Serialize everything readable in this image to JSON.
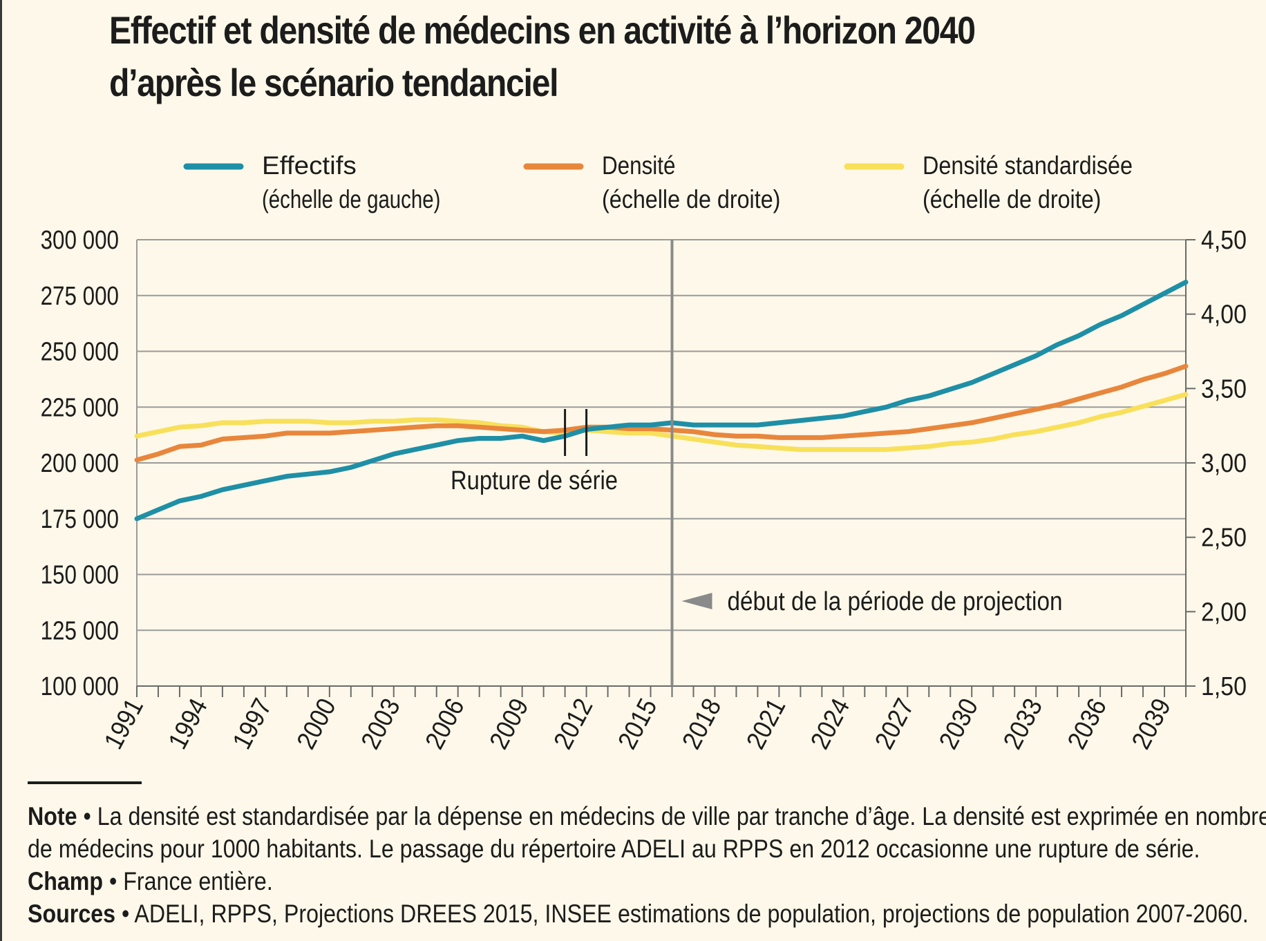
{
  "title": {
    "line1": "Effectif et densité de médecins en activité à l’horizon 2040",
    "line2": "d’après le scénario tendanciel"
  },
  "legend": [
    {
      "name": "Effectifs",
      "scale": "(échelle de gauche)",
      "color": "#1e8fa6"
    },
    {
      "name": "Densité",
      "scale": "(échelle de droite)",
      "color": "#e8863c"
    },
    {
      "name": "Densité standardisée",
      "scale": "(échelle de droite)",
      "color": "#f8e05a"
    }
  ],
  "annotations": {
    "rupture": "Rupture de série",
    "projection": "début de la période de projection"
  },
  "chart_data": {
    "type": "line",
    "x": [
      1991,
      1992,
      1993,
      1994,
      1995,
      1996,
      1997,
      1998,
      1999,
      2000,
      2001,
      2002,
      2003,
      2004,
      2005,
      2006,
      2007,
      2008,
      2009,
      2010,
      2011,
      2012,
      2013,
      2014,
      2015,
      2016,
      2017,
      2018,
      2019,
      2020,
      2021,
      2022,
      2023,
      2024,
      2025,
      2026,
      2027,
      2028,
      2029,
      2030,
      2031,
      2032,
      2033,
      2034,
      2035,
      2036,
      2037,
      2038,
      2039,
      2040
    ],
    "x_tick_labels": [
      "1991",
      "1994",
      "1997",
      "2000",
      "2003",
      "2006",
      "2009",
      "2012",
      "2015",
      "2018",
      "2021",
      "2024",
      "2027",
      "2030",
      "2033",
      "2036",
      "2039"
    ],
    "y_left": {
      "ticks": [
        "300 000",
        "275 000",
        "250 000",
        "225 000",
        "200 000",
        "175 000",
        "150 000",
        "125 000",
        "100 000"
      ],
      "ylim": [
        100000,
        300000
      ]
    },
    "y_right": {
      "ticks": [
        "4,50",
        "4,00",
        "3,50",
        "3,00",
        "2,50",
        "2,00",
        "1,50"
      ],
      "ylim": [
        1.5,
        4.5
      ]
    },
    "series": [
      {
        "name": "Effectifs",
        "axis": "left",
        "values": [
          175000,
          179000,
          183000,
          185000,
          188000,
          190000,
          192000,
          194000,
          195000,
          196000,
          198000,
          201000,
          204000,
          206000,
          208000,
          210000,
          211000,
          211000,
          212000,
          210000,
          212000,
          215000,
          216000,
          217000,
          217000,
          218000,
          217000,
          217000,
          217000,
          217000,
          218000,
          219000,
          220000,
          221000,
          223000,
          225000,
          228000,
          230000,
          233000,
          236000,
          240000,
          244000,
          248000,
          253000,
          257000,
          262000,
          266000,
          271000,
          276000,
          281000
        ]
      },
      {
        "name": "Densité",
        "axis": "right",
        "values": [
          3.02,
          3.06,
          3.11,
          3.12,
          3.16,
          3.17,
          3.18,
          3.2,
          3.2,
          3.2,
          3.21,
          3.22,
          3.23,
          3.24,
          3.25,
          3.25,
          3.24,
          3.23,
          3.22,
          3.21,
          3.22,
          3.24,
          3.24,
          3.23,
          3.23,
          3.22,
          3.21,
          3.19,
          3.18,
          3.18,
          3.17,
          3.17,
          3.17,
          3.18,
          3.19,
          3.2,
          3.21,
          3.23,
          3.25,
          3.27,
          3.3,
          3.33,
          3.36,
          3.39,
          3.43,
          3.47,
          3.51,
          3.56,
          3.6,
          3.65
        ]
      },
      {
        "name": "Densité standardisée",
        "axis": "right",
        "values": [
          3.18,
          3.21,
          3.24,
          3.25,
          3.27,
          3.27,
          3.28,
          3.28,
          3.28,
          3.27,
          3.27,
          3.28,
          3.28,
          3.29,
          3.29,
          3.28,
          3.27,
          3.25,
          3.24,
          3.21,
          3.2,
          3.22,
          3.21,
          3.2,
          3.2,
          3.18,
          3.16,
          3.14,
          3.12,
          3.11,
          3.1,
          3.09,
          3.09,
          3.09,
          3.09,
          3.09,
          3.1,
          3.11,
          3.13,
          3.14,
          3.16,
          3.19,
          3.21,
          3.24,
          3.27,
          3.31,
          3.34,
          3.38,
          3.42,
          3.46
        ]
      }
    ],
    "markers": {
      "rupture_years": [
        2011,
        2012
      ],
      "projection_start": 2016
    },
    "grid": "horizontal"
  },
  "notes": {
    "note_label": "Note",
    "note_text1": " • La densité est standardisée par la dépense en médecins de ville par tranche d’âge. La densité est exprimée en nombre",
    "note_text2": "de médecins pour 1000 habitants. Le passage du répertoire ADELI au RPPS en 2012 occasionne une rupture de série.",
    "champ_label": "Champ",
    "champ_text": " • France entière.",
    "sources_label": "Sources",
    "sources_text": " • ADELI, RPPS, Projections DREES 2015, INSEE estimations de population, projections de population 2007-2060."
  }
}
